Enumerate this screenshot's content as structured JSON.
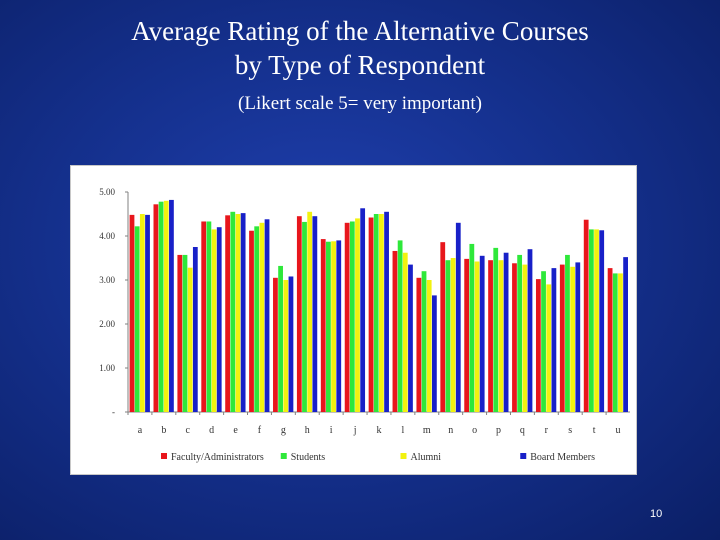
{
  "slide": {
    "title_line1": "Average Rating of the Alternative Courses",
    "title_line2": "by Type of Respondent",
    "subtitle": "(Likert scale 5= very important)",
    "page_number": "10"
  },
  "chart_data": {
    "type": "bar",
    "title": "",
    "xlabel": "",
    "ylabel": "",
    "ylim": [
      0,
      5
    ],
    "yticks": [
      {
        "value": 0,
        "label": "-"
      },
      {
        "value": 1,
        "label": "1.00"
      },
      {
        "value": 2,
        "label": "2.00"
      },
      {
        "value": 3,
        "label": "3.00"
      },
      {
        "value": 4,
        "label": "4.00"
      },
      {
        "value": 5,
        "label": "5.00"
      }
    ],
    "grid": false,
    "legend_position": "bottom",
    "categories": [
      "a",
      "b",
      "c",
      "d",
      "e",
      "f",
      "g",
      "h",
      "i",
      "j",
      "k",
      "l",
      "m",
      "n",
      "o",
      "p",
      "q",
      "r",
      "s",
      "t",
      "u"
    ],
    "series": [
      {
        "name": "Faculty/Administrators",
        "color": "#e8161c",
        "values": [
          4.48,
          4.72,
          3.57,
          4.33,
          4.47,
          4.12,
          3.05,
          4.45,
          3.93,
          4.3,
          4.42,
          3.66,
          3.05,
          3.86,
          3.48,
          3.45,
          3.38,
          3.02,
          3.35,
          4.37,
          3.27
        ]
      },
      {
        "name": "Students",
        "color": "#2ee83a",
        "values": [
          4.22,
          4.78,
          3.57,
          4.33,
          4.55,
          4.22,
          3.32,
          4.32,
          3.87,
          4.33,
          4.5,
          3.9,
          3.2,
          3.45,
          3.82,
          3.73,
          3.57,
          3.2,
          3.57,
          4.15,
          3.15
        ]
      },
      {
        "name": "Alumni",
        "color": "#f2f20f",
        "values": [
          4.5,
          4.8,
          3.28,
          4.15,
          4.5,
          4.3,
          3.0,
          4.55,
          3.88,
          4.4,
          4.5,
          3.62,
          3.0,
          3.5,
          3.42,
          3.45,
          3.35,
          2.9,
          3.3,
          4.15,
          3.15
        ]
      },
      {
        "name": "Board Members",
        "color": "#1820c8",
        "values": [
          4.48,
          4.82,
          3.75,
          4.2,
          4.52,
          4.38,
          3.08,
          4.45,
          3.9,
          4.63,
          4.55,
          3.35,
          2.65,
          4.3,
          3.55,
          3.62,
          3.7,
          3.27,
          3.4,
          4.13,
          3.52
        ]
      }
    ]
  }
}
